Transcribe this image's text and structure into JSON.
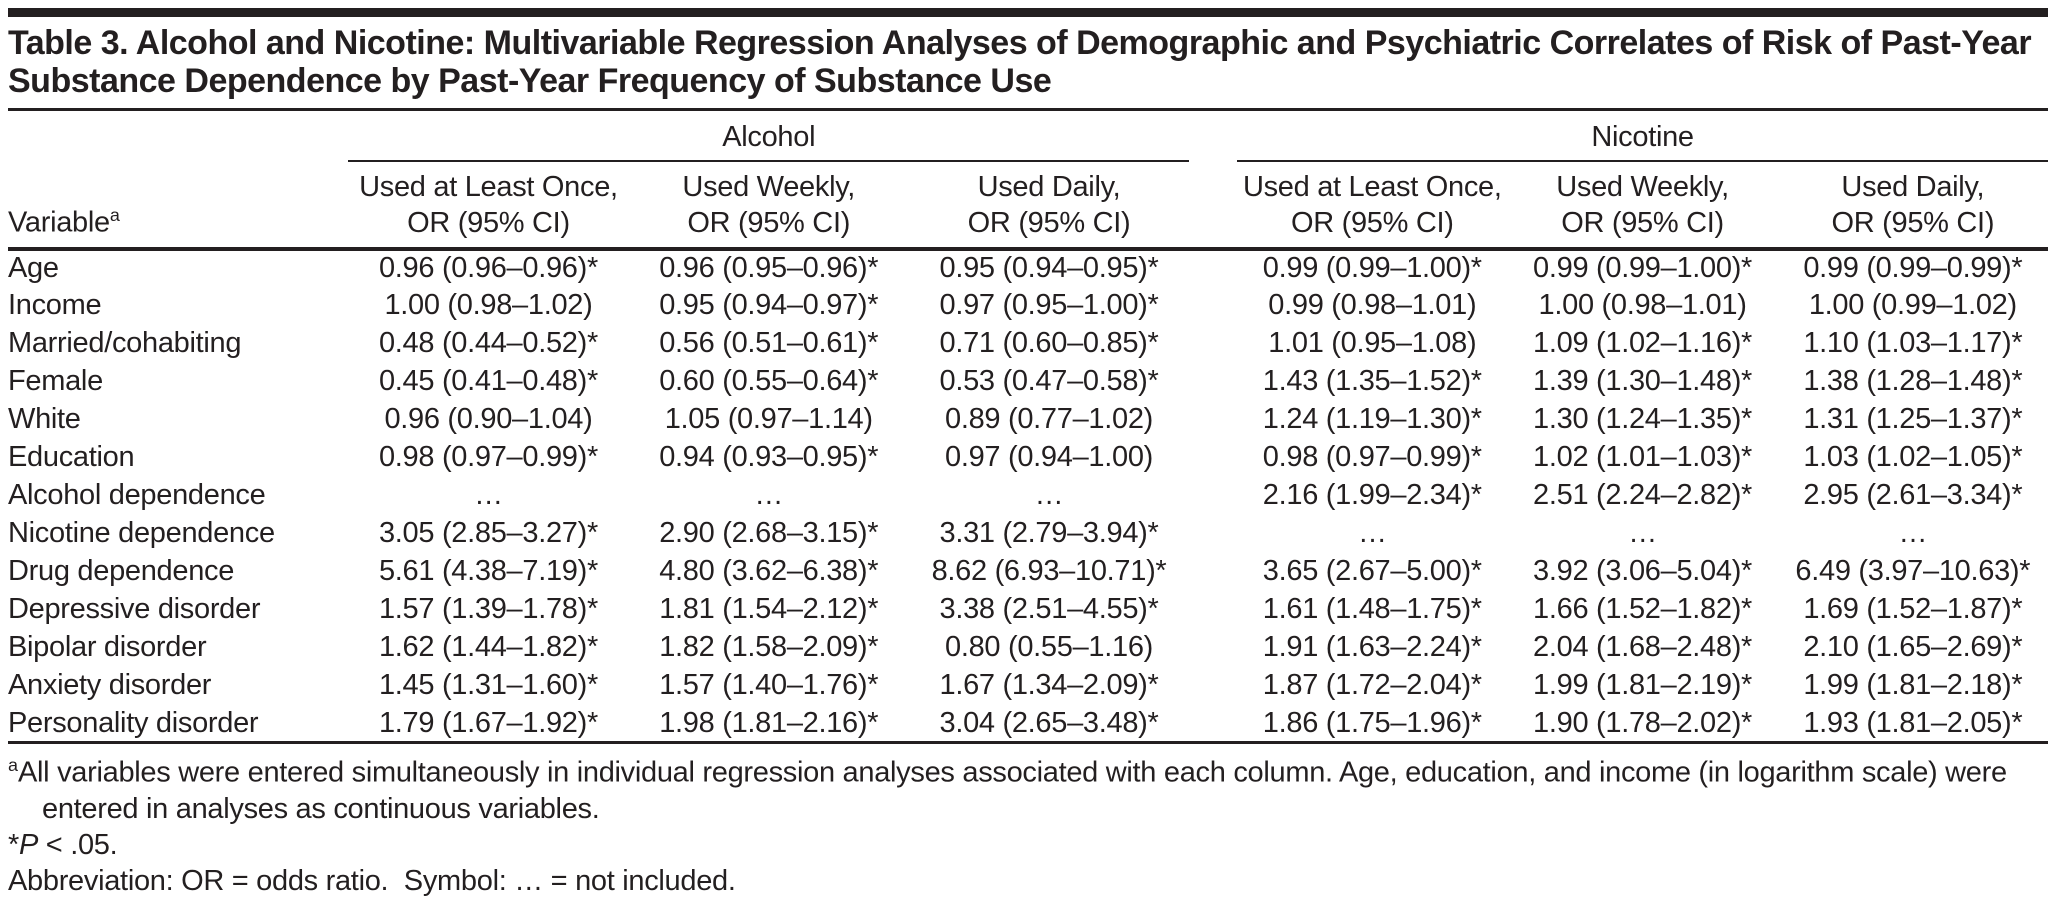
{
  "title": "Table 3. Alcohol and Nicotine: Multivariable Regression Analyses of Demographic and Psychiatric Correlates of Risk of Past-Year Substance Dependence by Past-Year Frequency of Substance Use",
  "table": {
    "variable_header": {
      "label": "Variable",
      "superscript": "a"
    },
    "groups": [
      {
        "label": "Alcohol",
        "columns": [
          {
            "line1": "Used at Least Once,",
            "line2": "OR (95% CI)"
          },
          {
            "line1": "Used Weekly,",
            "line2": "OR (95% CI)"
          },
          {
            "line1": "Used Daily,",
            "line2": "OR (95% CI)"
          }
        ]
      },
      {
        "label": "Nicotine",
        "columns": [
          {
            "line1": "Used at Least Once,",
            "line2": "OR (95% CI)"
          },
          {
            "line1": "Used Weekly,",
            "line2": "OR (95% CI)"
          },
          {
            "line1": "Used Daily,",
            "line2": "OR (95% CI)"
          }
        ]
      }
    ],
    "rows": [
      {
        "label": "Age",
        "values": [
          "0.96 (0.96–0.96)*",
          "0.96 (0.95–0.96)*",
          "0.95 (0.94–0.95)*",
          "0.99 (0.99–1.00)*",
          "0.99 (0.99–1.00)*",
          "0.99 (0.99–0.99)*"
        ]
      },
      {
        "label": "Income",
        "values": [
          "1.00 (0.98–1.02)",
          "0.95 (0.94–0.97)*",
          "0.97 (0.95–1.00)*",
          "0.99 (0.98–1.01)",
          "1.00 (0.98–1.01)",
          "1.00 (0.99–1.02)"
        ]
      },
      {
        "label": "Married/cohabiting",
        "values": [
          "0.48 (0.44–0.52)*",
          "0.56 (0.51–0.61)*",
          "0.71 (0.60–0.85)*",
          "1.01 (0.95–1.08)",
          "1.09 (1.02–1.16)*",
          "1.10 (1.03–1.17)*"
        ]
      },
      {
        "label": "Female",
        "values": [
          "0.45 (0.41–0.48)*",
          "0.60 (0.55–0.64)*",
          "0.53 (0.47–0.58)*",
          "1.43 (1.35–1.52)*",
          "1.39 (1.30–1.48)*",
          "1.38 (1.28–1.48)*"
        ]
      },
      {
        "label": "White",
        "values": [
          "0.96 (0.90–1.04)",
          "1.05 (0.97–1.14)",
          "0.89 (0.77–1.02)",
          "1.24 (1.19–1.30)*",
          "1.30 (1.24–1.35)*",
          "1.31 (1.25–1.37)*"
        ]
      },
      {
        "label": "Education",
        "values": [
          "0.98 (0.97–0.99)*",
          "0.94 (0.93–0.95)*",
          "0.97 (0.94–1.00)",
          "0.98 (0.97–0.99)*",
          "1.02 (1.01–1.03)*",
          "1.03 (1.02–1.05)*"
        ]
      },
      {
        "label": "Alcohol dependence",
        "values": [
          "…",
          "…",
          "…",
          "2.16 (1.99–2.34)*",
          "2.51 (2.24–2.82)*",
          "2.95 (2.61–3.34)*"
        ]
      },
      {
        "label": "Nicotine dependence",
        "values": [
          "3.05 (2.85–3.27)*",
          "2.90 (2.68–3.15)*",
          "3.31 (2.79–3.94)*",
          "…",
          "…",
          "…"
        ]
      },
      {
        "label": "Drug dependence",
        "values": [
          "5.61 (4.38–7.19)*",
          "4.80 (3.62–6.38)*",
          "8.62 (6.93–10.71)*",
          "3.65 (2.67–5.00)*",
          "3.92 (3.06–5.04)*",
          "6.49 (3.97–10.63)*"
        ]
      },
      {
        "label": "Depressive disorder",
        "values": [
          "1.57 (1.39–1.78)*",
          "1.81 (1.54–2.12)*",
          "3.38 (2.51–4.55)*",
          "1.61 (1.48–1.75)*",
          "1.66 (1.52–1.82)*",
          "1.69 (1.52–1.87)*"
        ]
      },
      {
        "label": "Bipolar disorder",
        "values": [
          "1.62 (1.44–1.82)*",
          "1.82 (1.58–2.09)*",
          "0.80 (0.55–1.16)",
          "1.91 (1.63–2.24)*",
          "2.04 (1.68–2.48)*",
          "2.10 (1.65–2.69)*"
        ]
      },
      {
        "label": "Anxiety disorder",
        "values": [
          "1.45 (1.31–1.60)*",
          "1.57 (1.40–1.76)*",
          "1.67 (1.34–2.09)*",
          "1.87 (1.72–2.04)*",
          "1.99 (1.81–2.19)*",
          "1.99 (1.81–2.18)*"
        ]
      },
      {
        "label": "Personality disorder",
        "values": [
          "1.79 (1.67–1.92)*",
          "1.98 (1.81–2.16)*",
          "3.04 (2.65–3.48)*",
          "1.86 (1.75–1.96)*",
          "1.90 (1.78–2.02)*",
          "1.93 (1.81–2.05)*"
        ]
      }
    ]
  },
  "footnotes": {
    "a": {
      "marker": "a",
      "text": "All variables were entered simultaneously in individual regression analyses associated with each column. Age, education, and income (in logarithm scale) were entered in analyses as continuous variables."
    },
    "significance": {
      "prefix": "*",
      "italic": "P",
      "rest": " < .05."
    },
    "abbreviation": "Abbreviation: OR = odds ratio.  Symbol: … = not included."
  }
}
